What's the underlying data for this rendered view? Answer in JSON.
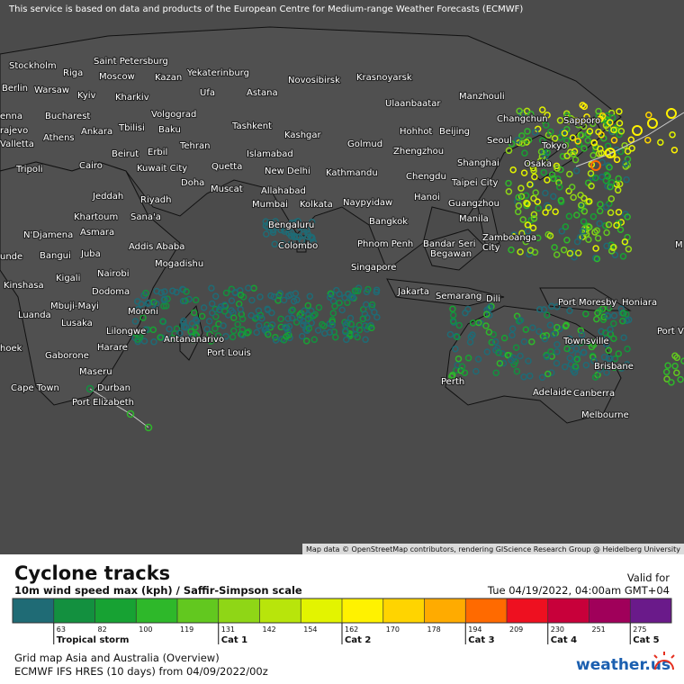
{
  "header": {
    "notice": "This service is based on data and products of the European Centre for Medium-range Weather Forecasts (ECMWF)"
  },
  "map": {
    "cities": [
      "Stockholm",
      "Saint Petersburg",
      "Riga",
      "Kazan",
      "Yekaterinburg",
      "Novosibirsk",
      "Krasnoyarsk",
      "Berlin",
      "Warsaw",
      "Moscow",
      "Kyiv",
      "Kharkiv",
      "Ufa",
      "Astana",
      "Ulaanbaatar",
      "Manzhouli",
      "enna",
      "Bucharest",
      "Volgograd",
      "Changchun",
      "Sapporo",
      "rajevo",
      "Tbilisi",
      "Baku",
      "Tashkent",
      "Kashgar",
      "Hohhot",
      "Beijing",
      "Seoul",
      "Valletta",
      "Athens",
      "Ankara",
      "Tehran",
      "Islamabad",
      "Golmud",
      "Zhengzhou",
      "Tokyo",
      "Tripoli",
      "Beirut",
      "Erbil",
      "Osaka",
      "Cairo",
      "Kuwait City",
      "Quetta",
      "New Delhi",
      "Kathmandu",
      "Shanghai",
      "Chengdu",
      "Doha",
      "Muscat",
      "Jeddah",
      "Riyadh",
      "Allahabad",
      "Taipei City",
      "Mumbai",
      "Kolkata",
      "Naypyidaw",
      "Hanoi",
      "Guangzhou",
      "Khartoum",
      "Sana'a",
      "Bengaluru",
      "Bangkok",
      "Manila",
      "N'Djamena",
      "Asmara",
      "Addis Ababa",
      "Colombo",
      "Phnom Penh",
      "Bandar Seri",
      "Begawan",
      "Zamboanga",
      "City",
      "unde",
      "Bangui",
      "Juba",
      "Mogadishu",
      "Singapore",
      "Kigali",
      "Nairobi",
      "Kinshasa",
      "Dodoma",
      "Jakarta",
      "Semarang",
      "Dili",
      "Port Moresby",
      "Honiara",
      "M",
      "Mbuji-Mayi",
      "Moroni",
      "Luanda",
      "Lusaka",
      "Lilongwe",
      "Port V",
      "Harare",
      "Antananarivo",
      "Townsville",
      "hoek",
      "Port Louis",
      "Gaborone",
      "Maseru",
      "Brisbane",
      "Perth",
      "Cape Town",
      "Durban",
      "Adelaide",
      "Canberra",
      "Port Elizabeth",
      "Melbourne"
    ],
    "attribution": "Map data © OpenStreetMap contributors, rendering GIScience Research Group @ Heidelberg University"
  },
  "legend": {
    "title": "Cyclone tracks",
    "subtitle": "10m wind speed max (kph) / Saffir-Simpson scale",
    "valid_label": "Valid for",
    "valid_time": "Tue 04/19/2022, 04:00am GMT+04",
    "ticks": [
      63,
      82,
      100,
      119,
      131,
      142,
      154,
      162,
      170,
      178,
      194,
      209,
      230,
      251,
      275
    ],
    "colors": [
      "#1f6b75",
      "#13903f",
      "#17a233",
      "#2eb82a",
      "#62c81f",
      "#8fd616",
      "#b8e50b",
      "#e3f400",
      "#fff200",
      "#ffd400",
      "#ffab00",
      "#ff6a00",
      "#ee1020",
      "#c8003a",
      "#a0005a",
      "#6a1a8a"
    ],
    "categories": [
      "Tropical storm",
      "Cat 1",
      "Cat 2",
      "Cat 3",
      "Cat 4",
      "Cat 5"
    ]
  },
  "footer": {
    "grid": "Grid map Asia and Australia (Overview)",
    "model": "ECMWF IFS HRES (10 days) from 04/09/2022/00z",
    "logo": "weather.us"
  }
}
